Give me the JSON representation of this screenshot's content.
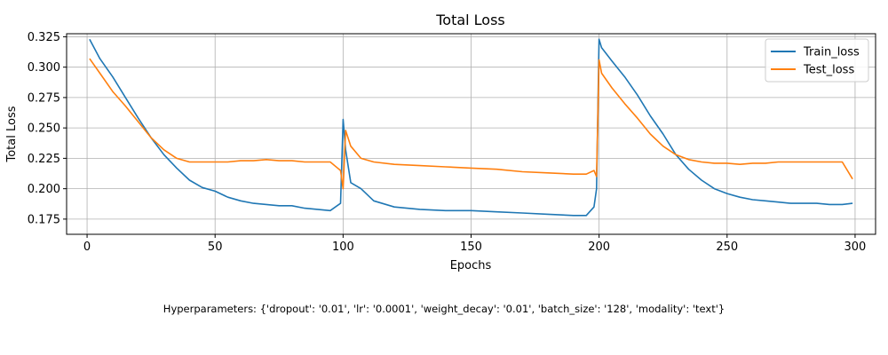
{
  "chart_data": {
    "type": "line",
    "title": "Total Loss",
    "xlabel": "Epochs",
    "ylabel": "Total Loss",
    "xlim": [
      -8,
      308
    ],
    "ylim": [
      0.1625,
      0.3275
    ],
    "x_ticks": [
      0,
      50,
      100,
      150,
      200,
      250,
      300
    ],
    "y_ticks": [
      0.175,
      0.2,
      0.225,
      0.25,
      0.275,
      0.3,
      0.325
    ],
    "grid": true,
    "legend_position": "top-right",
    "series": [
      {
        "name": "Train_loss",
        "color": "#1f77b4",
        "x": [
          1,
          5,
          10,
          15,
          20,
          25,
          30,
          35,
          40,
          45,
          50,
          55,
          60,
          65,
          70,
          75,
          80,
          85,
          90,
          95,
          99,
          100,
          101,
          103,
          107,
          112,
          120,
          130,
          140,
          150,
          160,
          170,
          180,
          190,
          195,
          198,
          199,
          200,
          201,
          205,
          210,
          215,
          220,
          225,
          230,
          235,
          240,
          245,
          250,
          255,
          260,
          265,
          270,
          275,
          280,
          285,
          290,
          295,
          299
        ],
        "y": [
          0.323,
          0.307,
          0.292,
          0.275,
          0.258,
          0.242,
          0.228,
          0.217,
          0.207,
          0.201,
          0.198,
          0.193,
          0.19,
          0.188,
          0.187,
          0.186,
          0.186,
          0.184,
          0.183,
          0.182,
          0.188,
          0.257,
          0.232,
          0.205,
          0.2,
          0.19,
          0.185,
          0.183,
          0.182,
          0.182,
          0.181,
          0.18,
          0.179,
          0.178,
          0.178,
          0.185,
          0.2,
          0.323,
          0.316,
          0.305,
          0.292,
          0.277,
          0.26,
          0.245,
          0.228,
          0.216,
          0.207,
          0.2,
          0.196,
          0.193,
          0.191,
          0.19,
          0.189,
          0.188,
          0.188,
          0.188,
          0.187,
          0.187,
          0.188
        ]
      },
      {
        "name": "Test_loss",
        "color": "#ff7f0e",
        "x": [
          1,
          5,
          10,
          15,
          20,
          25,
          30,
          35,
          40,
          45,
          50,
          55,
          60,
          65,
          70,
          75,
          80,
          85,
          90,
          95,
          99,
          100,
          101,
          103,
          107,
          112,
          120,
          130,
          140,
          150,
          160,
          170,
          180,
          190,
          195,
          198,
          199,
          200,
          201,
          205,
          210,
          215,
          220,
          225,
          230,
          235,
          240,
          245,
          250,
          255,
          260,
          265,
          270,
          275,
          280,
          285,
          290,
          295,
          299
        ],
        "y": [
          0.307,
          0.295,
          0.28,
          0.268,
          0.255,
          0.242,
          0.232,
          0.225,
          0.222,
          0.222,
          0.222,
          0.222,
          0.223,
          0.223,
          0.224,
          0.223,
          0.223,
          0.222,
          0.222,
          0.222,
          0.215,
          0.2,
          0.248,
          0.235,
          0.225,
          0.222,
          0.22,
          0.219,
          0.218,
          0.217,
          0.216,
          0.214,
          0.213,
          0.212,
          0.212,
          0.215,
          0.21,
          0.306,
          0.295,
          0.283,
          0.27,
          0.258,
          0.245,
          0.235,
          0.228,
          0.224,
          0.222,
          0.221,
          0.221,
          0.22,
          0.221,
          0.221,
          0.222,
          0.222,
          0.222,
          0.222,
          0.222,
          0.222,
          0.208
        ]
      }
    ]
  },
  "footer": {
    "hyperparameters": "Hyperparameters: {'dropout': '0.01', 'lr': '0.0001', 'weight_decay': '0.01', 'batch_size': '128', 'modality': 'text'}"
  }
}
